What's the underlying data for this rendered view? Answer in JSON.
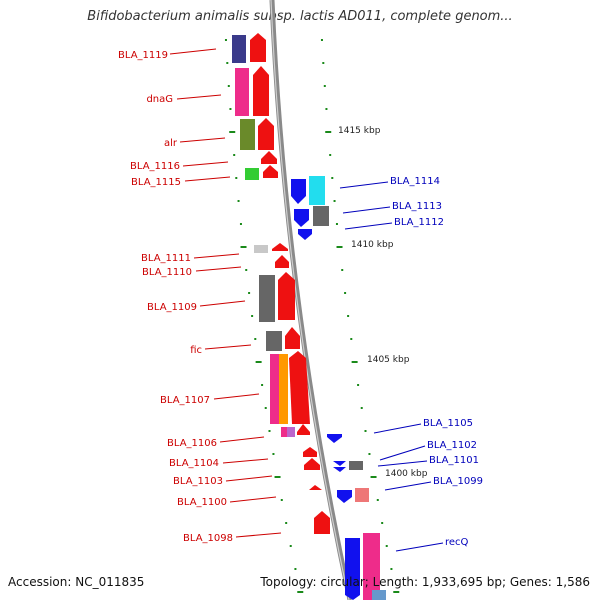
{
  "title": "Bifidobacterium animalis subsp. lactis AD011, complete genom...",
  "footer": {
    "accession": "Accession: NC_011835",
    "summary": "Topology: circular; Length: 1,933,695 bp; Genes: 1,586"
  },
  "colors": {
    "left_label": "#cc0000",
    "right_label": "#0000bb",
    "backbone": "#8a8a8a",
    "tick": "#1a8a1a"
  },
  "scale_labels": [
    "1415 kbp",
    "1410 kbp",
    "1405 kbp",
    "1400 kbp"
  ],
  "left_genes": [
    "BLA_1119",
    "dnaG",
    "alr",
    "BLA_1116",
    "BLA_1115",
    "BLA_1111",
    "BLA_1110",
    "BLA_1109",
    "fic",
    "BLA_1107",
    "BLA_1106",
    "BLA_1104",
    "BLA_1103",
    "BLA_1100",
    "BLA_1098"
  ],
  "right_genes": [
    "BLA_1114",
    "BLA_1113",
    "BLA_1112",
    "BLA_1105",
    "BLA_1102",
    "BLA_1101",
    "BLA_1099",
    "recQ"
  ]
}
